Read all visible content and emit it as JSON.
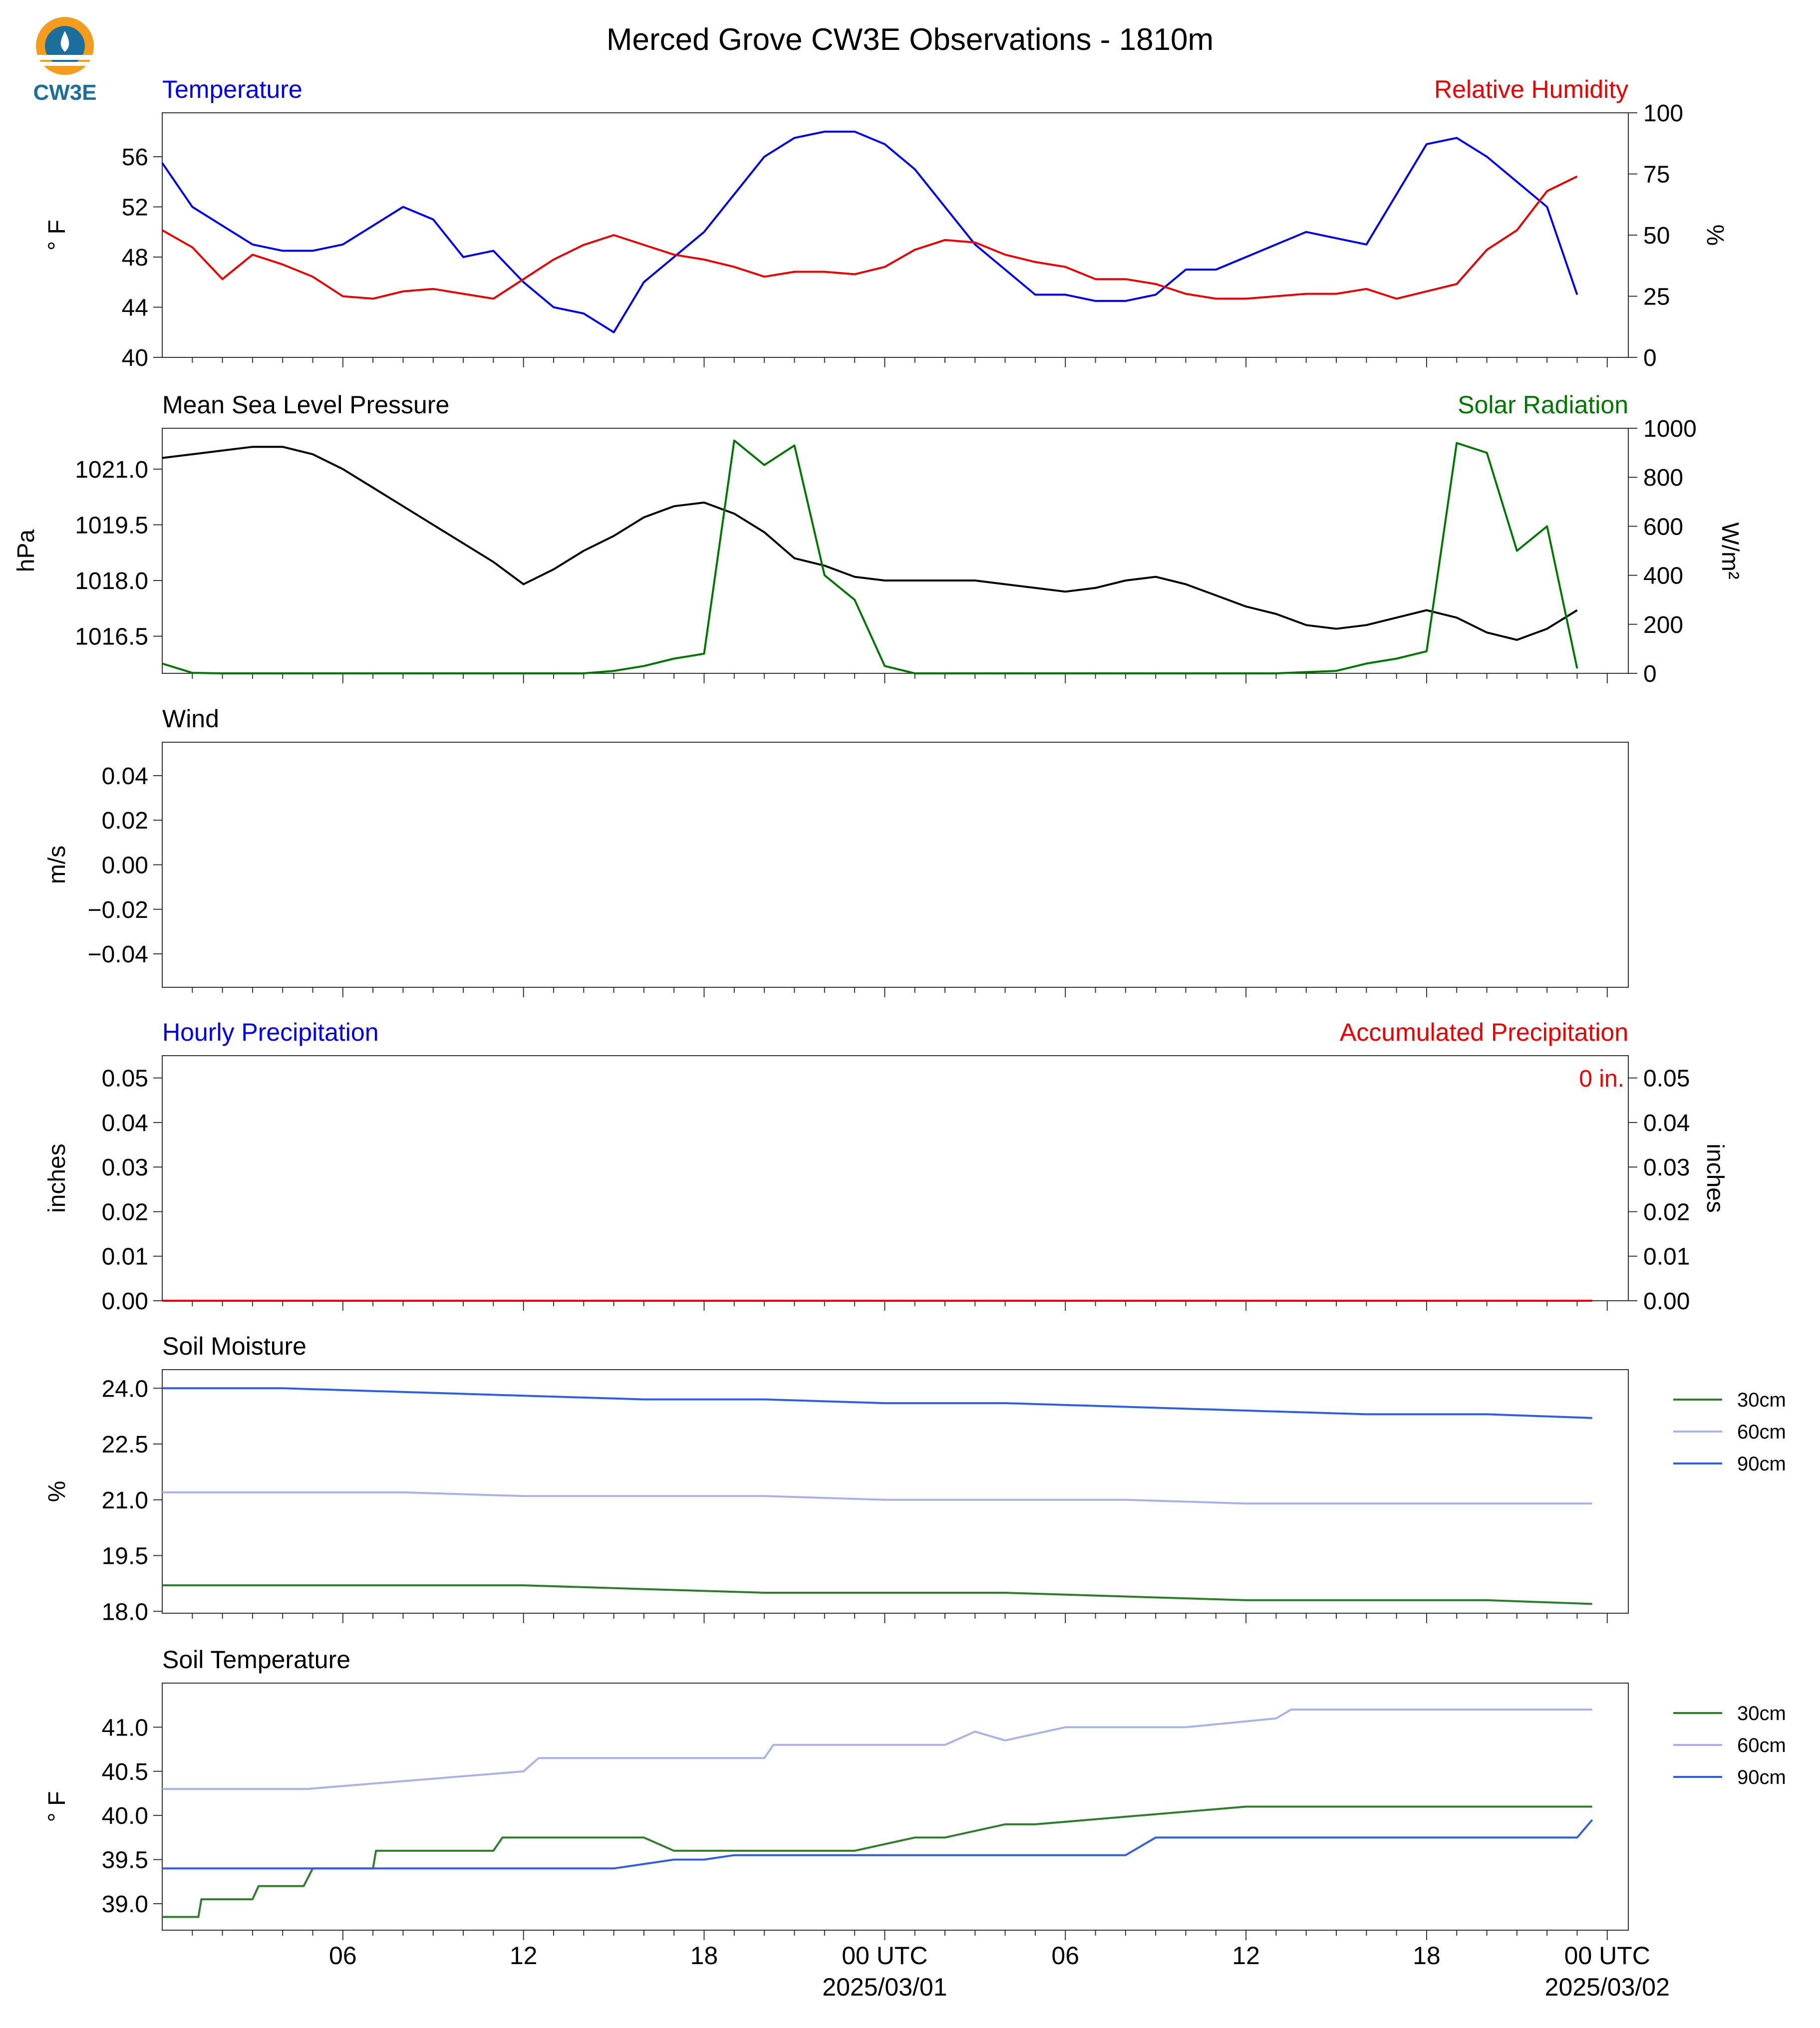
{
  "title": "Merced Grove CW3E Observations - 1810m",
  "logo": {
    "text": "CW3E",
    "icon": "cw3e-logo-icon"
  },
  "colors": {
    "temperature": "#0000ee",
    "humidity": "#ee0000",
    "pressure": "#000000",
    "solar": "#007700",
    "soil_30": "#2d7d2d",
    "soil_60": "#a9b2e6",
    "soil_90": "#2f5ee0"
  },
  "x_axis": {
    "tick_labels": [
      "06",
      "12",
      "18",
      "00 UTC",
      "06",
      "12",
      "18",
      "00 UTC"
    ],
    "date_labels": [
      "2025/03/01",
      "2025/03/02"
    ]
  },
  "chart_data": [
    {
      "type": "line",
      "title_left": "Temperature",
      "title_right": "Relative Humidity",
      "ylabel_left": "° F",
      "ylabel_right": "%",
      "ylim_left": [
        40,
        59.5
      ],
      "ylim_right": [
        0,
        100
      ],
      "yticks_left": [
        "40",
        "44",
        "48",
        "52",
        "56"
      ],
      "yticks_right": [
        "0",
        "25",
        "50",
        "75",
        "100"
      ],
      "series": [
        {
          "axis": "left",
          "hours": [
            0,
            1,
            2,
            3,
            4,
            5,
            6,
            7,
            8,
            9,
            10,
            11,
            12,
            13,
            14,
            15,
            16,
            17,
            18,
            19,
            20,
            21,
            22,
            23,
            24,
            25,
            26,
            27,
            28,
            29,
            30,
            31,
            32,
            33,
            34,
            35,
            36,
            37,
            38,
            39,
            40,
            41,
            42,
            43,
            44,
            45,
            46,
            47
          ],
          "values": [
            55.5,
            52,
            50.5,
            49,
            48.5,
            48.5,
            49,
            50.5,
            52,
            51,
            48,
            48.5,
            46,
            44,
            43.5,
            42,
            46,
            48,
            50,
            53,
            56,
            57.5,
            58,
            58,
            57,
            55,
            52,
            49,
            47,
            45,
            45,
            44.5,
            44.5,
            45,
            47,
            47,
            48,
            49,
            50,
            49.5,
            49,
            53,
            57,
            57.5,
            56,
            54,
            52,
            45
          ]
        },
        {
          "axis": "right",
          "hours": [
            0,
            1,
            2,
            3,
            4,
            5,
            6,
            7,
            8,
            9,
            10,
            11,
            12,
            13,
            14,
            15,
            16,
            17,
            18,
            19,
            20,
            21,
            22,
            23,
            24,
            25,
            26,
            27,
            28,
            29,
            30,
            31,
            32,
            33,
            34,
            35,
            36,
            37,
            38,
            39,
            40,
            41,
            42,
            43,
            44,
            45,
            46,
            47
          ],
          "values": [
            52,
            45,
            32,
            42,
            38,
            33,
            25,
            24,
            27,
            28,
            26,
            24,
            32,
            40,
            46,
            50,
            46,
            42,
            40,
            37,
            33,
            35,
            35,
            34,
            37,
            44,
            48,
            47,
            42,
            39,
            37,
            32,
            32,
            30,
            26,
            24,
            24,
            25,
            26,
            26,
            28,
            24,
            27,
            30,
            44,
            52,
            68,
            74
          ]
        }
      ]
    },
    {
      "type": "line",
      "title_left": "Mean Sea Level Pressure",
      "title_right": "Solar Radiation",
      "ylabel_left": "hPa",
      "ylabel_right": "W/m²",
      "ylim_left": [
        1015.5,
        1022.1
      ],
      "ylim_right": [
        0,
        1000
      ],
      "yticks_left": [
        "1016.5",
        "1018.0",
        "1019.5",
        "1021.0"
      ],
      "yticks_right": [
        "0",
        "200",
        "400",
        "600",
        "800",
        "1000"
      ],
      "series": [
        {
          "axis": "left",
          "hours": [
            0,
            1,
            2,
            3,
            4,
            5,
            6,
            7,
            8,
            9,
            10,
            11,
            12,
            13,
            14,
            15,
            16,
            17,
            18,
            19,
            20,
            21,
            22,
            23,
            24,
            25,
            26,
            27,
            28,
            29,
            30,
            31,
            32,
            33,
            34,
            35,
            36,
            37,
            38,
            39,
            40,
            41,
            42,
            43,
            44,
            45,
            46,
            47
          ],
          "values": [
            1021.3,
            1021.4,
            1021.5,
            1021.6,
            1021.6,
            1021.4,
            1021,
            1020.5,
            1020,
            1019.5,
            1019,
            1018.5,
            1017.9,
            1018.3,
            1018.8,
            1019.2,
            1019.7,
            1020,
            1020.1,
            1019.8,
            1019.3,
            1018.6,
            1018.4,
            1018.1,
            1018,
            1018,
            1018,
            1018,
            1017.9,
            1017.8,
            1017.7,
            1017.8,
            1018,
            1018.1,
            1017.9,
            1017.6,
            1017.3,
            1017.1,
            1016.8,
            1016.7,
            1016.8,
            1017,
            1017.2,
            1017,
            1016.6,
            1016.4,
            1016.7,
            1017.2
          ]
        },
        {
          "axis": "right",
          "hours": [
            0,
            1,
            2,
            3,
            4,
            5,
            6,
            7,
            8,
            9,
            10,
            11,
            12,
            13,
            14,
            15,
            16,
            17,
            18,
            19,
            20,
            21,
            22,
            23,
            24,
            25,
            26,
            27,
            28,
            29,
            30,
            31,
            32,
            33,
            34,
            35,
            36,
            37,
            38,
            39,
            40,
            41,
            42,
            43,
            44,
            45,
            46,
            47
          ],
          "values": [
            40,
            2,
            0,
            0,
            0,
            0,
            0,
            0,
            0,
            0,
            0,
            0,
            0,
            0,
            0,
            10,
            30,
            60,
            80,
            950,
            850,
            930,
            400,
            300,
            30,
            0,
            0,
            0,
            0,
            0,
            0,
            0,
            0,
            0,
            0,
            0,
            0,
            0,
            5,
            10,
            40,
            60,
            90,
            940,
            900,
            500,
            600,
            20
          ]
        }
      ]
    },
    {
      "type": "line",
      "title_left": "Wind",
      "ylabel_left": "m/s",
      "ylim_left": [
        -0.055,
        0.055
      ],
      "yticks_left": [
        "−0.04",
        "−0.02",
        "0.00",
        "0.02",
        "0.04"
      ],
      "series": []
    },
    {
      "type": "line",
      "title_left": "Hourly Precipitation",
      "title_right": "Accumulated Precipitation",
      "annotation": "0 in.",
      "ylabel_left": "inches",
      "ylabel_right": "inches",
      "ylim_left": [
        0,
        0.055
      ],
      "ylim_right": [
        0,
        0.055
      ],
      "yticks_left": [
        "0.00",
        "0.01",
        "0.02",
        "0.03",
        "0.04",
        "0.05"
      ],
      "yticks_right": [
        "0.00",
        "0.01",
        "0.02",
        "0.03",
        "0.04",
        "0.05"
      ],
      "series": [
        {
          "axis": "left",
          "hours": [
            0,
            47.5
          ],
          "values": [
            0,
            0
          ]
        },
        {
          "axis": "right",
          "hours": [
            0,
            47.5
          ],
          "values": [
            0,
            0
          ]
        }
      ]
    },
    {
      "type": "line",
      "title_left": "Soil Moisture",
      "ylabel_left": "%",
      "ylim_left": [
        17.95,
        24.5
      ],
      "yticks_left": [
        "18.0",
        "19.5",
        "21.0",
        "22.5",
        "24.0"
      ],
      "legend": [
        "30cm",
        "60cm",
        "90cm"
      ],
      "series": [
        {
          "name": "30cm",
          "hours": [
            0,
            4,
            8,
            12,
            16,
            20,
            24,
            28,
            32,
            36,
            40,
            44,
            47.5
          ],
          "values": [
            18.7,
            18.7,
            18.7,
            18.7,
            18.6,
            18.5,
            18.5,
            18.5,
            18.4,
            18.3,
            18.3,
            18.3,
            18.2
          ]
        },
        {
          "name": "60cm",
          "hours": [
            0,
            4,
            8,
            12,
            16,
            20,
            24,
            28,
            32,
            36,
            40,
            44,
            47.5
          ],
          "values": [
            21.2,
            21.2,
            21.2,
            21.1,
            21.1,
            21.1,
            21.0,
            21.0,
            21.0,
            20.9,
            20.9,
            20.9,
            20.9
          ]
        },
        {
          "name": "90cm",
          "hours": [
            0,
            4,
            8,
            12,
            16,
            20,
            24,
            28,
            32,
            36,
            40,
            44,
            47.5
          ],
          "values": [
            24.0,
            24.0,
            23.9,
            23.8,
            23.7,
            23.7,
            23.6,
            23.6,
            23.5,
            23.4,
            23.3,
            23.3,
            23.2
          ]
        }
      ]
    },
    {
      "type": "line",
      "title_left": "Soil Temperature",
      "ylabel_left": "° F",
      "ylim_left": [
        38.7,
        41.5
      ],
      "yticks_left": [
        "39.0",
        "39.5",
        "40.0",
        "40.5",
        "41.0"
      ],
      "legend": [
        "30cm",
        "60cm",
        "90cm"
      ],
      "series": [
        {
          "name": "30cm",
          "hours": [
            0,
            1.2,
            1.3,
            3,
            3.2,
            4.7,
            5,
            7,
            7.1,
            11,
            11.3,
            16,
            17,
            17.5,
            22,
            23,
            25,
            26,
            28,
            29,
            36,
            47.5
          ],
          "values": [
            38.85,
            38.85,
            39.05,
            39.05,
            39.2,
            39.2,
            39.4,
            39.4,
            39.6,
            39.6,
            39.75,
            39.75,
            39.6,
            39.6,
            39.6,
            39.6,
            39.75,
            39.75,
            39.9,
            39.9,
            40.1,
            40.1
          ]
        },
        {
          "name": "60cm",
          "hours": [
            0,
            4.5,
            4.8,
            12,
            12.5,
            20,
            20.3,
            26,
            27,
            28,
            30,
            34,
            37,
            37.5,
            47.5
          ],
          "values": [
            40.3,
            40.3,
            40.3,
            40.5,
            40.65,
            40.65,
            40.8,
            40.8,
            40.95,
            40.85,
            41.0,
            41.0,
            41.1,
            41.2,
            41.2
          ]
        },
        {
          "name": "90cm",
          "hours": [
            0,
            15,
            17,
            18,
            19,
            25,
            32,
            33,
            47,
            47.5
          ],
          "values": [
            39.4,
            39.4,
            39.5,
            39.5,
            39.55,
            39.55,
            39.55,
            39.75,
            39.75,
            39.95
          ]
        }
      ]
    }
  ]
}
